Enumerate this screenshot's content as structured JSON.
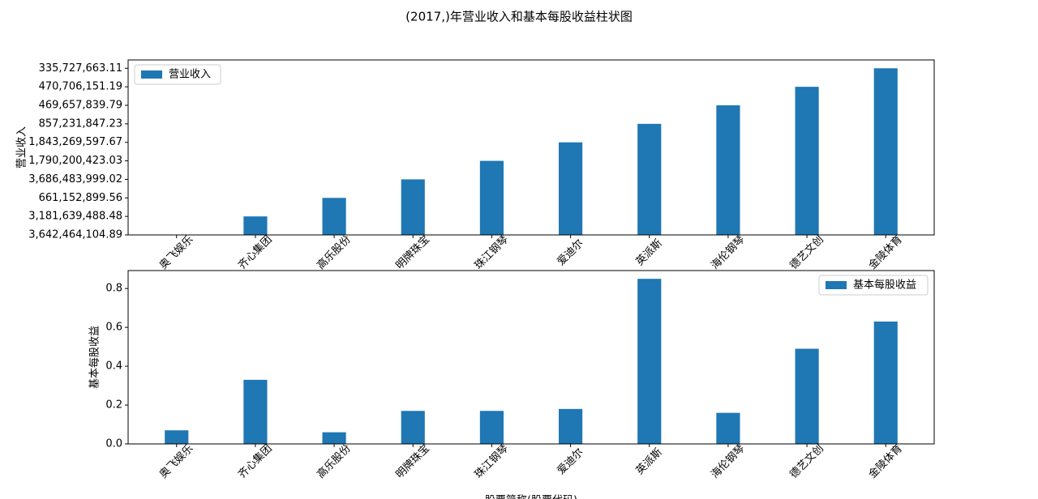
{
  "title": "(2017,)年营业收入和基本每股收益柱状图",
  "chart_data": [
    {
      "type": "bar",
      "categories": [
        "奥飞娱乐",
        "齐心集团",
        "高乐股份",
        "明牌珠宝",
        "珠江钢琴",
        "爱迪尔",
        "英派斯",
        "海伦钢琴",
        "德艺文创",
        "金陵体育"
      ],
      "series": [
        {
          "name": "营业收入",
          "color": "#1f77b4",
          "values": [
            0,
            1,
            2,
            3,
            4,
            5,
            6,
            7,
            8,
            9
          ]
        }
      ],
      "ylabel": "营业收入",
      "ylim": [
        0,
        9.45
      ],
      "yticks": [
        {
          "value": 0,
          "label": "3,642,464,104.89"
        },
        {
          "value": 1,
          "label": "3,181,639,488.48"
        },
        {
          "value": 2,
          "label": "661,152,899.56"
        },
        {
          "value": 3,
          "label": "3,686,483,999.02"
        },
        {
          "value": 4,
          "label": "1,790,200,423.03"
        },
        {
          "value": 5,
          "label": "1,843,269,597.67"
        },
        {
          "value": 6,
          "label": "857,231,847.23"
        },
        {
          "value": 7,
          "label": "469,657,839.79"
        },
        {
          "value": 8,
          "label": "470,706,151.19"
        },
        {
          "value": 9,
          "label": "335,727,663.11"
        }
      ],
      "legend": "upper left"
    },
    {
      "type": "bar",
      "categories": [
        "奥飞娱乐",
        "齐心集团",
        "高乐股份",
        "明牌珠宝",
        "珠江钢琴",
        "爱迪尔",
        "英派斯",
        "海伦钢琴",
        "德艺文创",
        "金陵体育"
      ],
      "series": [
        {
          "name": "基本每股收益",
          "color": "#1f77b4",
          "values": [
            0.07,
            0.33,
            0.06,
            0.17,
            0.17,
            0.18,
            0.85,
            0.16,
            0.49,
            0.63
          ]
        }
      ],
      "ylabel": "基本每股收益",
      "xlabel": "股票简称(股票代码)",
      "ylim": [
        0,
        0.8925
      ],
      "yticks": [
        {
          "value": 0,
          "label": "0.0"
        },
        {
          "value": 0.2,
          "label": "0.2"
        },
        {
          "value": 0.4,
          "label": "0.4"
        },
        {
          "value": 0.6,
          "label": "0.6"
        },
        {
          "value": 0.8,
          "label": "0.8"
        }
      ],
      "legend": "upper right"
    }
  ]
}
